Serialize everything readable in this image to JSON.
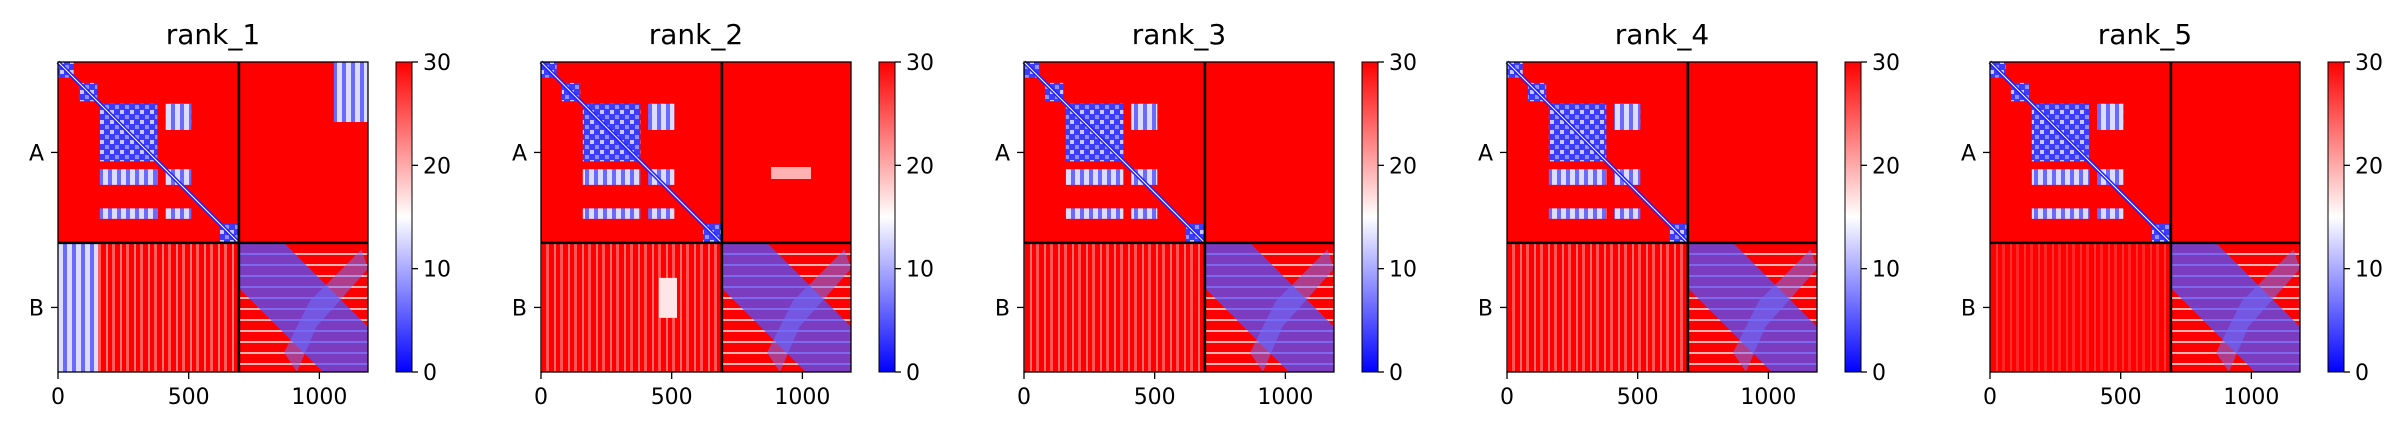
{
  "chart_data": {
    "type": "heatmap",
    "colorbar": {
      "cmap": [
        "#0000ff",
        "#ffffff",
        "#ff0000"
      ],
      "vmin": 0,
      "vmax": 30,
      "ticks": [
        0,
        10,
        20,
        30
      ],
      "tick_labels": [
        "0",
        "10",
        "20",
        "30"
      ]
    },
    "x_ticks": [
      0,
      500,
      1000
    ],
    "x_tick_labels": [
      "0",
      "500",
      "1000"
    ],
    "xlim": [
      0,
      1186
    ],
    "chain_boundary": 692,
    "chain_labels": [
      "A",
      "B"
    ],
    "panels": [
      {
        "title": "rank_1"
      },
      {
        "title": "rank_2"
      },
      {
        "title": "rank_3"
      },
      {
        "title": "rank_4"
      },
      {
        "title": "rank_5"
      }
    ]
  }
}
